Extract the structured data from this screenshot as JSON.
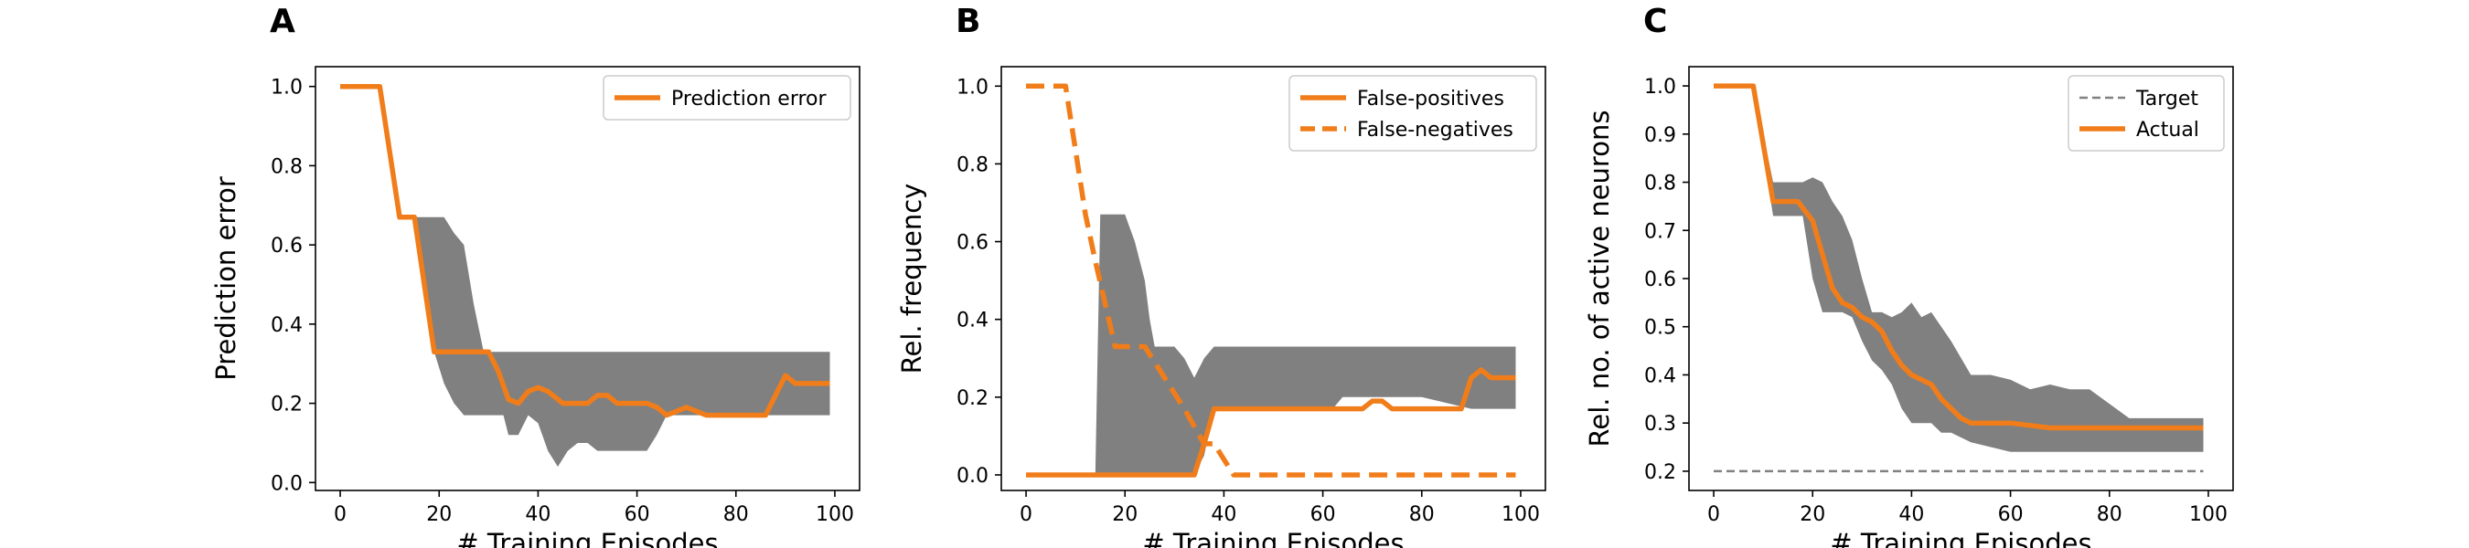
{
  "chart_data": [
    {
      "type": "line",
      "panel_label": "A",
      "title": "",
      "xlabel": "# Training Episodes",
      "ylabel": "Prediction error",
      "xlim": [
        -5,
        105
      ],
      "ylim": [
        -0.02,
        1.05
      ],
      "xticks": [
        0,
        20,
        40,
        60,
        80,
        100
      ],
      "yticks": [
        0.0,
        0.2,
        0.4,
        0.6,
        0.8,
        1.0
      ],
      "ytick_format": 1,
      "grid": false,
      "legend_position": "top-right",
      "band": {
        "color": "#808080",
        "points": [
          [
            0,
            1.0,
            1.0
          ],
          [
            8,
            1.0,
            1.0
          ],
          [
            12,
            0.67,
            0.67
          ],
          [
            15,
            0.67,
            0.67
          ],
          [
            17,
            0.67,
            0.5
          ],
          [
            19,
            0.67,
            0.33
          ],
          [
            21,
            0.67,
            0.25
          ],
          [
            23,
            0.63,
            0.2
          ],
          [
            25,
            0.6,
            0.17
          ],
          [
            27,
            0.45,
            0.17
          ],
          [
            29,
            0.33,
            0.17
          ],
          [
            31,
            0.33,
            0.17
          ],
          [
            33,
            0.33,
            0.17
          ],
          [
            34,
            0.33,
            0.12
          ],
          [
            36,
            0.33,
            0.12
          ],
          [
            38,
            0.33,
            0.17
          ],
          [
            40,
            0.33,
            0.15
          ],
          [
            42,
            0.33,
            0.08
          ],
          [
            44,
            0.33,
            0.04
          ],
          [
            46,
            0.33,
            0.08
          ],
          [
            48,
            0.33,
            0.1
          ],
          [
            50,
            0.33,
            0.1
          ],
          [
            52,
            0.33,
            0.08
          ],
          [
            56,
            0.33,
            0.08
          ],
          [
            60,
            0.33,
            0.08
          ],
          [
            62,
            0.33,
            0.08
          ],
          [
            64,
            0.33,
            0.12
          ],
          [
            66,
            0.33,
            0.17
          ],
          [
            70,
            0.33,
            0.17
          ],
          [
            80,
            0.33,
            0.17
          ],
          [
            90,
            0.33,
            0.17
          ],
          [
            99,
            0.33,
            0.17
          ]
        ]
      },
      "series": [
        {
          "name": "Prediction error",
          "color": "#f07d1a",
          "dash": "solid",
          "points": [
            [
              0,
              1.0
            ],
            [
              8,
              1.0
            ],
            [
              12,
              0.67
            ],
            [
              15,
              0.67
            ],
            [
              19,
              0.33
            ],
            [
              24,
              0.33
            ],
            [
              30,
              0.33
            ],
            [
              32,
              0.28
            ],
            [
              34,
              0.21
            ],
            [
              36,
              0.2
            ],
            [
              38,
              0.23
            ],
            [
              40,
              0.24
            ],
            [
              42,
              0.23
            ],
            [
              43,
              0.22
            ],
            [
              45,
              0.2
            ],
            [
              48,
              0.2
            ],
            [
              50,
              0.2
            ],
            [
              52,
              0.22
            ],
            [
              54,
              0.22
            ],
            [
              56,
              0.2
            ],
            [
              58,
              0.2
            ],
            [
              62,
              0.2
            ],
            [
              64,
              0.19
            ],
            [
              66,
              0.17
            ],
            [
              68,
              0.18
            ],
            [
              70,
              0.19
            ],
            [
              72,
              0.18
            ],
            [
              74,
              0.17
            ],
            [
              78,
              0.17
            ],
            [
              82,
              0.17
            ],
            [
              86,
              0.17
            ],
            [
              88,
              0.22
            ],
            [
              90,
              0.27
            ],
            [
              92,
              0.25
            ],
            [
              96,
              0.25
            ],
            [
              99,
              0.25
            ]
          ]
        }
      ]
    },
    {
      "type": "line",
      "panel_label": "B",
      "title": "",
      "xlabel": "# Training Episodes",
      "ylabel": "Rel. frequency",
      "xlim": [
        -5,
        105
      ],
      "ylim": [
        -0.04,
        1.05
      ],
      "xticks": [
        0,
        20,
        40,
        60,
        80,
        100
      ],
      "yticks": [
        0.0,
        0.2,
        0.4,
        0.6,
        0.8,
        1.0
      ],
      "ytick_format": 1,
      "grid": false,
      "legend_position": "top-right",
      "band": {
        "color": "#808080",
        "points": [
          [
            14,
            0.0,
            0.0
          ],
          [
            15,
            0.67,
            0.0
          ],
          [
            19,
            0.67,
            0.0
          ],
          [
            20,
            0.67,
            0.0
          ],
          [
            22,
            0.6,
            0.0
          ],
          [
            24,
            0.5,
            0.0
          ],
          [
            25,
            0.4,
            0.0
          ],
          [
            26,
            0.33,
            0.0
          ],
          [
            28,
            0.33,
            0.0
          ],
          [
            30,
            0.33,
            0.0
          ],
          [
            32,
            0.3,
            0.0
          ],
          [
            34,
            0.25,
            0.0
          ],
          [
            36,
            0.3,
            0.05
          ],
          [
            38,
            0.33,
            0.17
          ],
          [
            44,
            0.33,
            0.17
          ],
          [
            50,
            0.33,
            0.17
          ],
          [
            60,
            0.33,
            0.17
          ],
          [
            62,
            0.33,
            0.17
          ],
          [
            64,
            0.33,
            0.2
          ],
          [
            66,
            0.33,
            0.2
          ],
          [
            70,
            0.33,
            0.2
          ],
          [
            80,
            0.33,
            0.2
          ],
          [
            90,
            0.33,
            0.17
          ],
          [
            99,
            0.33,
            0.17
          ]
        ]
      },
      "series": [
        {
          "name": "False-positives",
          "color": "#f07d1a",
          "dash": "solid",
          "points": [
            [
              0,
              0.0
            ],
            [
              34,
              0.0
            ],
            [
              36,
              0.08
            ],
            [
              38,
              0.17
            ],
            [
              44,
              0.17
            ],
            [
              60,
              0.17
            ],
            [
              68,
              0.17
            ],
            [
              70,
              0.19
            ],
            [
              72,
              0.19
            ],
            [
              74,
              0.17
            ],
            [
              80,
              0.17
            ],
            [
              88,
              0.17
            ],
            [
              90,
              0.25
            ],
            [
              92,
              0.27
            ],
            [
              94,
              0.25
            ],
            [
              99,
              0.25
            ]
          ]
        },
        {
          "name": "False-negatives",
          "color": "#f07d1a",
          "dash": "dashed",
          "points": [
            [
              0,
              1.0
            ],
            [
              8,
              1.0
            ],
            [
              12,
              0.67
            ],
            [
              14,
              0.55
            ],
            [
              18,
              0.33
            ],
            [
              24,
              0.33
            ],
            [
              28,
              0.25
            ],
            [
              32,
              0.17
            ],
            [
              36,
              0.08
            ],
            [
              38,
              0.08
            ],
            [
              42,
              0.0
            ],
            [
              60,
              0.0
            ],
            [
              80,
              0.0
            ],
            [
              99,
              0.0
            ]
          ]
        }
      ]
    },
    {
      "type": "line",
      "panel_label": "C",
      "title": "",
      "xlabel": "# Training Episodes",
      "ylabel": "Rel. no. of active neurons",
      "xlim": [
        -5,
        105
      ],
      "ylim": [
        0.16,
        1.04
      ],
      "xticks": [
        0,
        20,
        40,
        60,
        80,
        100
      ],
      "yticks": [
        0.2,
        0.3,
        0.4,
        0.5,
        0.6,
        0.7,
        0.8,
        0.9,
        1.0
      ],
      "ytick_format": 1,
      "grid": false,
      "legend_position": "top-right",
      "band": {
        "color": "#808080",
        "points": [
          [
            0,
            1.0,
            1.0
          ],
          [
            8,
            1.0,
            1.0
          ],
          [
            12,
            0.8,
            0.73
          ],
          [
            15,
            0.8,
            0.73
          ],
          [
            18,
            0.8,
            0.73
          ],
          [
            20,
            0.81,
            0.6
          ],
          [
            22,
            0.8,
            0.53
          ],
          [
            24,
            0.76,
            0.53
          ],
          [
            26,
            0.73,
            0.53
          ],
          [
            28,
            0.68,
            0.52
          ],
          [
            30,
            0.6,
            0.47
          ],
          [
            32,
            0.53,
            0.43
          ],
          [
            34,
            0.53,
            0.41
          ],
          [
            36,
            0.52,
            0.38
          ],
          [
            38,
            0.53,
            0.33
          ],
          [
            40,
            0.55,
            0.3
          ],
          [
            42,
            0.52,
            0.3
          ],
          [
            44,
            0.53,
            0.3
          ],
          [
            46,
            0.5,
            0.28
          ],
          [
            48,
            0.47,
            0.28
          ],
          [
            52,
            0.4,
            0.26
          ],
          [
            56,
            0.4,
            0.25
          ],
          [
            60,
            0.39,
            0.24
          ],
          [
            64,
            0.37,
            0.24
          ],
          [
            68,
            0.38,
            0.24
          ],
          [
            72,
            0.37,
            0.24
          ],
          [
            76,
            0.37,
            0.24
          ],
          [
            80,
            0.34,
            0.24
          ],
          [
            84,
            0.31,
            0.24
          ],
          [
            88,
            0.31,
            0.24
          ],
          [
            92,
            0.31,
            0.24
          ],
          [
            96,
            0.31,
            0.24
          ],
          [
            99,
            0.31,
            0.24
          ]
        ]
      },
      "series": [
        {
          "name": "Target",
          "color": "#808080",
          "dash": "dashed",
          "points": [
            [
              0,
              0.2
            ],
            [
              99,
              0.2
            ]
          ]
        },
        {
          "name": "Actual",
          "color": "#f07d1a",
          "dash": "solid",
          "points": [
            [
              0,
              1.0
            ],
            [
              8,
              1.0
            ],
            [
              12,
              0.76
            ],
            [
              17,
              0.76
            ],
            [
              20,
              0.72
            ],
            [
              22,
              0.65
            ],
            [
              24,
              0.58
            ],
            [
              26,
              0.55
            ],
            [
              28,
              0.54
            ],
            [
              30,
              0.52
            ],
            [
              32,
              0.51
            ],
            [
              34,
              0.49
            ],
            [
              36,
              0.45
            ],
            [
              38,
              0.42
            ],
            [
              40,
              0.4
            ],
            [
              42,
              0.39
            ],
            [
              44,
              0.38
            ],
            [
              46,
              0.35
            ],
            [
              48,
              0.33
            ],
            [
              50,
              0.31
            ],
            [
              52,
              0.3
            ],
            [
              56,
              0.3
            ],
            [
              60,
              0.3
            ],
            [
              64,
              0.295
            ],
            [
              68,
              0.29
            ],
            [
              72,
              0.29
            ],
            [
              76,
              0.29
            ],
            [
              80,
              0.29
            ],
            [
              84,
              0.29
            ],
            [
              88,
              0.29
            ],
            [
              92,
              0.29
            ],
            [
              96,
              0.29
            ],
            [
              99,
              0.29
            ]
          ]
        }
      ]
    }
  ]
}
